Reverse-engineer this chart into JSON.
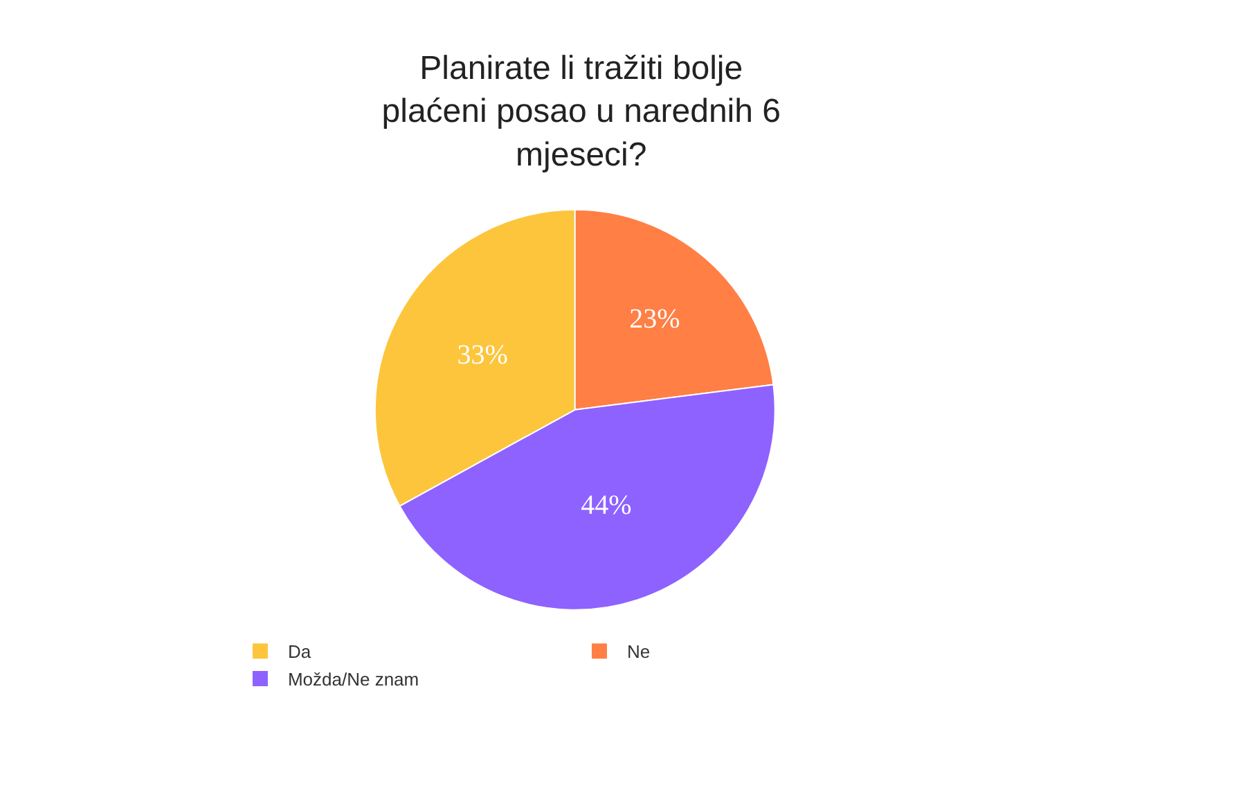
{
  "chart_data": {
    "type": "pie",
    "title": "Planirate li tražiti bolje plaćeni posao u narednih 6 mjeseci?",
    "categories": [
      "Da",
      "Ne",
      "Možda/Ne znam"
    ],
    "values": [
      33,
      23,
      44
    ],
    "colors": [
      "#fcc53c",
      "#ff7f45",
      "#8d62ff"
    ],
    "value_labels": [
      "33%",
      "23%",
      "44%"
    ],
    "legend": "bottom"
  }
}
